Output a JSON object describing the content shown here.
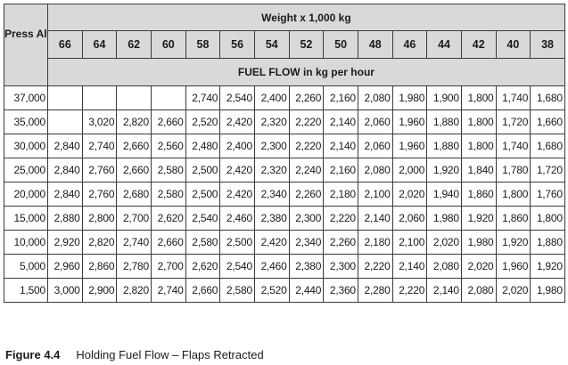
{
  "header": {
    "press_alt_label": "Press Alt. ft",
    "weight_label": "Weight x 1,000 kg",
    "fuel_flow_label": "FUEL FLOW in kg per hour"
  },
  "weights": [
    "66",
    "64",
    "62",
    "60",
    "58",
    "56",
    "54",
    "52",
    "50",
    "48",
    "46",
    "44",
    "42",
    "40",
    "38"
  ],
  "rows": [
    {
      "alt": "37,000",
      "values": [
        "",
        "",
        "",
        "",
        "2,740",
        "2,540",
        "2,400",
        "2,260",
        "2,160",
        "2,080",
        "1,980",
        "1,900",
        "1,800",
        "1,740",
        "1,680"
      ]
    },
    {
      "alt": "35,000",
      "values": [
        "",
        "3,020",
        "2,820",
        "2,660",
        "2,520",
        "2,420",
        "2,320",
        "2,220",
        "2,140",
        "2,060",
        "1,960",
        "1,880",
        "1,800",
        "1,720",
        "1,660"
      ]
    },
    {
      "alt": "30,000",
      "values": [
        "2,840",
        "2,740",
        "2,660",
        "2,560",
        "2,480",
        "2,400",
        "2,300",
        "2,220",
        "2,140",
        "2,060",
        "1,960",
        "1,880",
        "1,800",
        "1,740",
        "1,680"
      ]
    },
    {
      "alt": "25,000",
      "values": [
        "2,840",
        "2,760",
        "2,660",
        "2,580",
        "2,500",
        "2,420",
        "2,320",
        "2,240",
        "2,160",
        "2,080",
        "2,000",
        "1,920",
        "1,840",
        "1,780",
        "1,720"
      ]
    },
    {
      "alt": "20,000",
      "values": [
        "2,840",
        "2,760",
        "2,680",
        "2,580",
        "2,500",
        "2,420",
        "2,340",
        "2,260",
        "2,180",
        "2,100",
        "2,020",
        "1,940",
        "1,860",
        "1,800",
        "1,760"
      ]
    },
    {
      "alt": "15,000",
      "values": [
        "2,880",
        "2,800",
        "2,700",
        "2,620",
        "2,540",
        "2,460",
        "2,380",
        "2,300",
        "2,220",
        "2,140",
        "2,060",
        "1,980",
        "1,920",
        "1,860",
        "1,800"
      ]
    },
    {
      "alt": "10,000",
      "values": [
        "2,920",
        "2,820",
        "2,740",
        "2,660",
        "2,580",
        "2,500",
        "2,420",
        "2,340",
        "2,260",
        "2,180",
        "2,100",
        "2,020",
        "1,980",
        "1,920",
        "1,880"
      ]
    },
    {
      "alt": "5,000",
      "values": [
        "2,960",
        "2,860",
        "2,780",
        "2,700",
        "2,620",
        "2,540",
        "2,460",
        "2,380",
        "2,300",
        "2,220",
        "2,140",
        "2,080",
        "2,020",
        "1,960",
        "1,920"
      ]
    },
    {
      "alt": "1,500",
      "values": [
        "3,000",
        "2,900",
        "2,820",
        "2,740",
        "2,660",
        "2,580",
        "2,520",
        "2,440",
        "2,360",
        "2,280",
        "2,220",
        "2,140",
        "2,080",
        "2,020",
        "1,980"
      ]
    }
  ],
  "caption": {
    "figure": "Figure 4.4",
    "title": "Holding Fuel Flow – Flaps Retracted"
  }
}
